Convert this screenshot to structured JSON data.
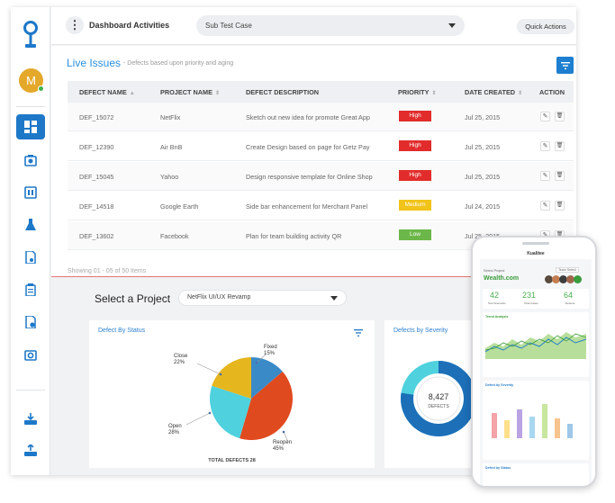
{
  "header": {
    "menu_icon": "kebab-icon",
    "title": "Dashboard Activities",
    "sub_select": "Sub Test Case",
    "quick_actions": "Quick Actions"
  },
  "sidebar": {
    "avatar_initial": "M",
    "icons": [
      "dashboard-icon",
      "gallery-icon",
      "board-icon",
      "flask-icon",
      "document-icon",
      "clipboard-icon",
      "file-gear-icon",
      "settings-icon",
      "download-tray-icon",
      "upload-tray-icon"
    ]
  },
  "live_issues": {
    "title": "Live Issues",
    "subtitle": "- Defects based upon priority and aging",
    "columns": [
      "DEFECT NAME",
      "PROJECT NAME",
      "DEFECT DESCRIPTION",
      "PRIORITY",
      "DATE CREATED",
      "ACTION"
    ],
    "rows": [
      {
        "name": "DEF_15072",
        "project": "NetFlix",
        "description": "Sketch out new idea for promote Great App",
        "priority": "High",
        "priority_color": "#e22b2b",
        "date": "Jul 25, 2015"
      },
      {
        "name": "DEF_12390",
        "project": "Air BnB",
        "description": "Create Design based on page for Getz Pay",
        "priority": "High",
        "priority_color": "#e22b2b",
        "date": "Jul 25, 2015"
      },
      {
        "name": "DEF_15045",
        "project": "Yahoo",
        "description": "Design responsive template for Online Shop",
        "priority": "High",
        "priority_color": "#e22b2b",
        "date": "Jul 25, 2015"
      },
      {
        "name": "DEF_14518",
        "project": "Google Earth",
        "description": "Side bar enhancement for Merchant Panel",
        "priority": "Medium",
        "priority_color": "#f2c319",
        "date": "Jul 24, 2015"
      },
      {
        "name": "DEF_13602",
        "project": "Facebook",
        "description": "Plan for team building activity QR",
        "priority": "Low",
        "priority_color": "#6cb749",
        "date": "Jul 25, 2015"
      }
    ],
    "showing": "Showing 01 - 05 of 50 Items"
  },
  "select_project": {
    "title": "Select a Project",
    "value": "NetFlix UI/UX Revamp"
  },
  "defect_status": {
    "title": "Defect By Status",
    "total_label": "TOTAL DEFECTS 28",
    "slices": [
      {
        "name": "Fixed",
        "percent": "15%",
        "value": 15,
        "color": "#3a8ac8"
      },
      {
        "name": "Reopen",
        "percent": "45%",
        "value": 45,
        "color": "#e04a1f"
      },
      {
        "name": "Open",
        "percent": "28%",
        "value": 28,
        "color": "#4fd1de"
      },
      {
        "name": "Close",
        "percent": "22%",
        "value": 22,
        "color": "#e6b61e"
      }
    ]
  },
  "defect_severity": {
    "title": "Defects by Severity",
    "total": "8,427",
    "label": "DEFECTS"
  },
  "phone": {
    "app_title": "Kualitee",
    "project_label": "Select Project",
    "project_value": "Wealth.com",
    "team_select": "Team Select",
    "stats": [
      {
        "value": "42",
        "label": "Test Scenarios",
        "color": "#4caf50"
      },
      {
        "value": "231",
        "label": "Total Cases",
        "color": "#4caf50"
      },
      {
        "value": "64",
        "label": "Defects",
        "color": "#4caf50"
      }
    ],
    "trend_title": "Trend Analysis",
    "severity_title": "Defect by Severity",
    "bottom_title": "Defect by Status"
  }
}
